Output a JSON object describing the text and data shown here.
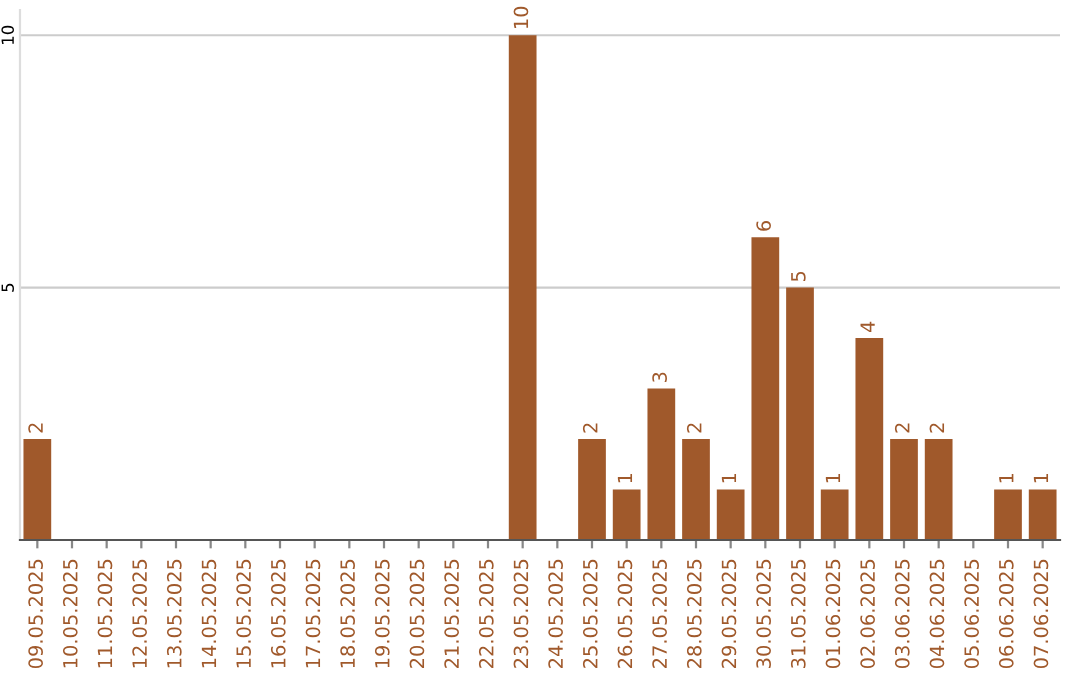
{
  "chart_data": {
    "type": "bar",
    "categories": [
      "09.05.2025",
      "10.05.2025",
      "11.05.2025",
      "12.05.2025",
      "13.05.2025",
      "14.05.2025",
      "15.05.2025",
      "16.05.2025",
      "17.05.2025",
      "18.05.2025",
      "19.05.2025",
      "20.05.2025",
      "21.05.2025",
      "22.05.2025",
      "23.05.2025",
      "24.05.2025",
      "25.05.2025",
      "26.05.2025",
      "27.05.2025",
      "28.05.2025",
      "29.05.2025",
      "30.05.2025",
      "31.05.2025",
      "01.06.2025",
      "02.06.2025",
      "03.06.2025",
      "04.06.2025",
      "05.06.2025",
      "06.06.2025",
      "07.06.2025"
    ],
    "values": [
      2,
      0,
      0,
      0,
      0,
      0,
      0,
      0,
      0,
      0,
      0,
      0,
      0,
      0,
      10,
      0,
      2,
      1,
      3,
      2,
      1,
      6,
      5,
      1,
      4,
      2,
      2,
      0,
      1,
      1
    ],
    "value_labels": [
      "2",
      null,
      null,
      null,
      null,
      null,
      null,
      null,
      null,
      null,
      null,
      null,
      null,
      null,
      "10",
      null,
      "2",
      "1",
      "3",
      "2",
      "1",
      "6",
      "5",
      "1",
      "4",
      "2",
      "2",
      null,
      "1",
      "1"
    ],
    "color": "#a0592b",
    "ylim": [
      0,
      10.5
    ],
    "yticks": [
      5,
      10
    ],
    "grid": "y"
  }
}
